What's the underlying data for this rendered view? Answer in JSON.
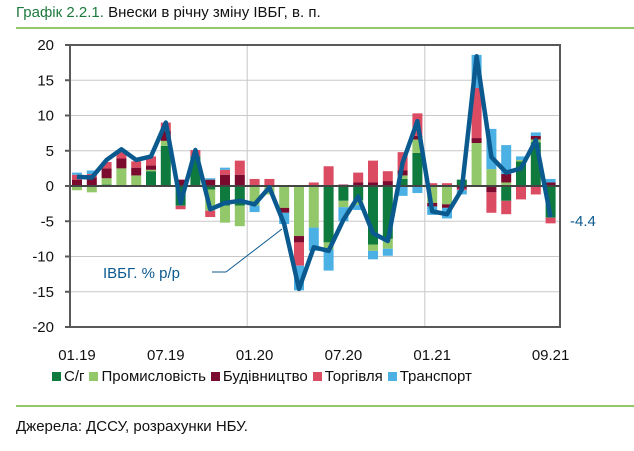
{
  "title": {
    "number": "Графік 2.2.1.",
    "text": "Внески в річну зміну ІВБГ, в. п."
  },
  "source": "Джерела: ДССУ, розрахунки НБУ.",
  "chart_data": {
    "type": "bar",
    "stacked": true,
    "title": "Внески в річну зміну ІВБГ, в. п.",
    "xlabel": "",
    "ylabel": "",
    "ylim": [
      -20,
      20
    ],
    "yticks": [
      20,
      15,
      10,
      5,
      0,
      -5,
      -10,
      -15,
      -20
    ],
    "x_tick_labels": [
      {
        "index": 0,
        "label": "01.19"
      },
      {
        "index": 6,
        "label": "07.19"
      },
      {
        "index": 12,
        "label": "01.20"
      },
      {
        "index": 18,
        "label": "07.20"
      },
      {
        "index": 24,
        "label": "01.21"
      },
      {
        "index": 32,
        "label": "09.21"
      }
    ],
    "categories": [
      "01.19",
      "02.19",
      "03.19",
      "04.19",
      "05.19",
      "06.19",
      "07.19",
      "08.19",
      "09.19",
      "10.19",
      "11.19",
      "12.19",
      "01.20",
      "02.20",
      "03.20",
      "04.20",
      "05.20",
      "06.20",
      "07.20",
      "08.20",
      "09.20",
      "10.20",
      "11.20",
      "12.20",
      "01.21",
      "02.21",
      "03.21",
      "04.21",
      "05.21",
      "06.21",
      "07.21",
      "08.21",
      "09.21"
    ],
    "series": [
      {
        "name": "С/г",
        "color": "#0e7a3e",
        "values": [
          0,
          0,
          0.2,
          0,
          0,
          2.1,
          5.7,
          -2.8,
          4.2,
          -0.5,
          -2.8,
          -2.8,
          0,
          0,
          0,
          0,
          0,
          -8.0,
          -2.1,
          -2.0,
          -8.3,
          -7.5,
          1.0,
          4.7,
          0,
          0,
          0.9,
          0,
          0,
          -2.1,
          3.5,
          6.2,
          -4.5
        ]
      },
      {
        "name": "Промисловість",
        "color": "#92c86a",
        "values": [
          -0.6,
          -0.9,
          0.9,
          2.5,
          1.5,
          0.2,
          0.7,
          0,
          0,
          -3.0,
          -2.4,
          -2.9,
          -2.8,
          -1.2,
          -3.1,
          -7.1,
          -5.9,
          -1.0,
          -0.9,
          -0.7,
          -0.9,
          -1.4,
          0.5,
          1.9,
          -2.4,
          -2.6,
          0,
          6.1,
          2.4,
          0.5,
          0.2,
          0.4,
          0
        ]
      },
      {
        "name": "Будівництво",
        "color": "#7a0a2e",
        "values": [
          0.9,
          1.2,
          1.4,
          1.4,
          1.1,
          0.6,
          1.4,
          0.9,
          0,
          0.9,
          1.6,
          1.6,
          0,
          0,
          -0.7,
          -0.9,
          0,
          0,
          0.2,
          0.5,
          0.5,
          0.7,
          0.7,
          0.5,
          -0.5,
          -0.5,
          -0.4,
          0.7,
          -0.9,
          1.2,
          0,
          0.5,
          0.5
        ]
      },
      {
        "name": "Торгівля",
        "color": "#db4c63",
        "values": [
          0.7,
          0.5,
          0.9,
          0.9,
          0.9,
          1.3,
          1.2,
          -0.5,
          0.9,
          -0.9,
          0.7,
          2.0,
          1.0,
          1.0,
          0,
          -3.3,
          0.5,
          2.8,
          0,
          1.4,
          3.1,
          1.4,
          2.6,
          3.2,
          0.4,
          0.4,
          -0.2,
          7.1,
          -2.9,
          -1.9,
          -1.9,
          -1.2,
          -0.8
        ]
      },
      {
        "name": "Транспорт",
        "color": "#4bb0e3",
        "values": [
          0.3,
          0.5,
          0,
          0,
          0,
          0,
          0,
          0,
          0,
          0.2,
          0.3,
          0,
          -0.9,
          0,
          -1.6,
          -3.5,
          -3.3,
          -3.0,
          -2.0,
          -0.7,
          -1.2,
          -1.0,
          -1.4,
          -1.0,
          -1.2,
          -1.5,
          -0.6,
          4.7,
          5.7,
          4.1,
          0.5,
          0.5,
          0.5
        ]
      }
    ],
    "line": {
      "name": "ІВБГ. % р/р",
      "color": "#0b5a8f",
      "values": [
        1.3,
        1.2,
        3.7,
        5.2,
        3.7,
        4.2,
        9.0,
        -2.4,
        5.1,
        -3.3,
        -2.4,
        -2.1,
        -2.6,
        -0.2,
        -5.4,
        -14.6,
        -8.7,
        -9.2,
        -4.8,
        -1.5,
        -6.7,
        -7.8,
        3.3,
        9.2,
        -3.6,
        -4.0,
        -0.5,
        18.4,
        4.1,
        1.9,
        2.5,
        6.5,
        -4.4
      ]
    },
    "annotations": [
      {
        "text": "ІВБГ. % р/р"
      },
      {
        "text": "-4.4"
      }
    ],
    "legend_position": "bottom"
  }
}
